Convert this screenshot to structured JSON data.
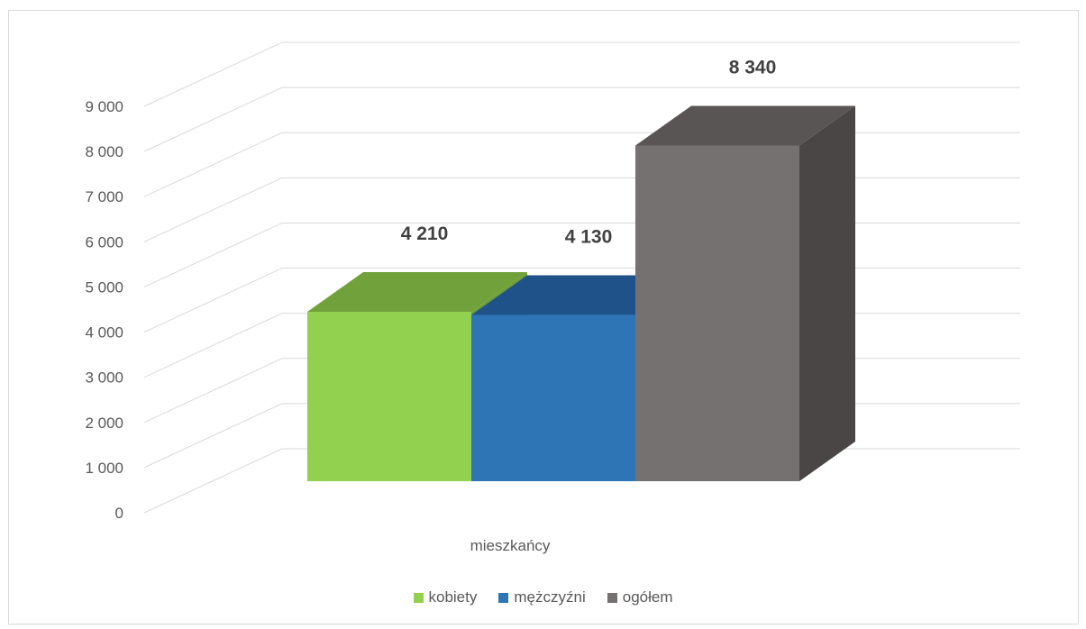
{
  "chart_data": {
    "type": "bar",
    "categories": [
      "mieszkańcy"
    ],
    "series": [
      {
        "name": "kobiety",
        "values": [
          4210
        ],
        "color": "#92d050",
        "top_color": "#70a13b",
        "side_color": "#6f9e3a"
      },
      {
        "name": "mężczyźni",
        "values": [
          4130
        ],
        "color": "#2e75b6",
        "top_color": "#1f5289",
        "side_color": "#1f4e79"
      },
      {
        "name": "ogółem",
        "values": [
          8340
        ],
        "color": "#767171",
        "top_color": "#595555",
        "side_color": "#4a4646"
      }
    ],
    "data_labels": [
      "4 210",
      "4 130",
      "8 340"
    ],
    "y_ticks": [
      {
        "value": 0,
        "label": "0"
      },
      {
        "value": 1000,
        "label": "1 000"
      },
      {
        "value": 2000,
        "label": "2 000"
      },
      {
        "value": 3000,
        "label": "3 000"
      },
      {
        "value": 4000,
        "label": "4 000"
      },
      {
        "value": 5000,
        "label": "5 000"
      },
      {
        "value": 6000,
        "label": "6 000"
      },
      {
        "value": 7000,
        "label": "7 000"
      },
      {
        "value": 8000,
        "label": "8 000"
      },
      {
        "value": 9000,
        "label": "9 000"
      }
    ],
    "ylim": [
      0,
      9000
    ],
    "title": "",
    "xlabel": "",
    "ylabel": "",
    "grid": true,
    "style": "3d-clustered-column",
    "legend_position": "bottom"
  }
}
